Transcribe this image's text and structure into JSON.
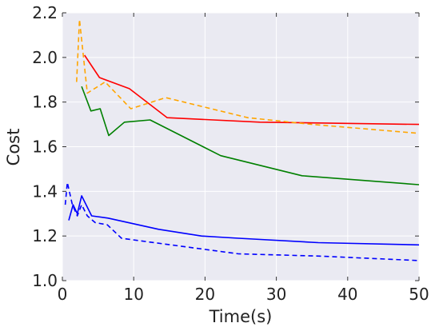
{
  "chart_data": {
    "type": "line",
    "title": "",
    "xlabel": "Time(s)",
    "ylabel": "Cost",
    "xlim": [
      0,
      50
    ],
    "ylim": [
      1.0,
      2.2
    ],
    "xticks": [
      0,
      10,
      20,
      30,
      40,
      50
    ],
    "yticks": [
      1.0,
      1.2,
      1.4,
      1.6,
      1.8,
      2.0,
      2.2
    ],
    "xtick_labels": [
      "0",
      "10",
      "20",
      "30",
      "40",
      "50"
    ],
    "ytick_labels": [
      "1.0",
      "1.2",
      "1.4",
      "1.6",
      "1.8",
      "2.0",
      "2.2"
    ],
    "grid": true,
    "background": "#eaeaf2",
    "series": [
      {
        "color": "#ff0000",
        "dash": "solid",
        "x": [
          3.1,
          5.2,
          9.4,
          14.7,
          27.7,
          50
        ],
        "y": [
          2.01,
          1.91,
          1.86,
          1.73,
          1.71,
          1.7
        ]
      },
      {
        "color": "#ffa500",
        "dash": "dashed",
        "x": [
          2.0,
          2.4,
          3.5,
          6.0,
          9.6,
          14.5,
          26.0,
          35.0,
          50
        ],
        "y": [
          1.89,
          2.17,
          1.84,
          1.89,
          1.77,
          1.82,
          1.73,
          1.7,
          1.66
        ]
      },
      {
        "color": "#008000",
        "dash": "solid",
        "x": [
          2.7,
          4.0,
          5.3,
          6.5,
          8.7,
          12.3,
          22.2,
          33.6,
          50
        ],
        "y": [
          1.87,
          1.76,
          1.77,
          1.65,
          1.71,
          1.72,
          1.56,
          1.47,
          1.43
        ]
      },
      {
        "color": "#0000ff",
        "dash": "solid",
        "x": [
          0.9,
          1.5,
          2.1,
          2.7,
          4.1,
          6.4,
          13.5,
          19.5,
          24.7,
          35.9,
          50
        ],
        "y": [
          1.27,
          1.34,
          1.3,
          1.38,
          1.29,
          1.28,
          1.23,
          1.2,
          1.19,
          1.17,
          1.16
        ]
      },
      {
        "color": "#0000ff",
        "dash": "dashed",
        "x": [
          0.4,
          0.7,
          1.4,
          2.1,
          2.7,
          3.5,
          4.6,
          6.3,
          8.3,
          10.6,
          24.7,
          36.0,
          50
        ],
        "y": [
          1.34,
          1.44,
          1.34,
          1.29,
          1.34,
          1.29,
          1.26,
          1.25,
          1.19,
          1.18,
          1.12,
          1.11,
          1.09
        ]
      }
    ]
  }
}
